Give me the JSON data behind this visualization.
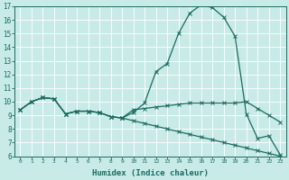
{
  "x": [
    0,
    1,
    2,
    3,
    4,
    5,
    6,
    7,
    8,
    9,
    10,
    11,
    12,
    13,
    14,
    15,
    16,
    17,
    18,
    19,
    20,
    21,
    22,
    23
  ],
  "line1": [
    9.4,
    10.0,
    10.3,
    10.2,
    9.1,
    9.3,
    9.3,
    9.2,
    8.9,
    8.8,
    9.2,
    9.9,
    12.2,
    12.8,
    15.0,
    16.5,
    17.1,
    16.9,
    16.2,
    14.8,
    9.1,
    7.3,
    7.5,
    6.1
  ],
  "line2": [
    9.4,
    10.0,
    10.3,
    10.2,
    9.1,
    9.3,
    9.3,
    9.2,
    8.9,
    8.8,
    8.6,
    8.4,
    8.2,
    8.0,
    7.8,
    7.6,
    7.4,
    7.2,
    7.0,
    6.8,
    6.6,
    6.4,
    6.2,
    6.0
  ],
  "line3": [
    9.4,
    10.0,
    10.3,
    10.2,
    9.1,
    9.3,
    9.3,
    9.2,
    8.9,
    8.8,
    9.4,
    9.5,
    9.6,
    9.7,
    9.8,
    9.9,
    9.9,
    9.9,
    9.9,
    9.9,
    10.0,
    9.5,
    9.0,
    8.5
  ],
  "line_color": "#1a6b5e",
  "bg_color": "#c8ebe8",
  "grid_color": "#ffffff",
  "xlabel": "Humidex (Indice chaleur)",
  "ylim": [
    6,
    17
  ],
  "xlim": [
    -0.5,
    23.5
  ],
  "yticks": [
    6,
    7,
    8,
    9,
    10,
    11,
    12,
    13,
    14,
    15,
    16,
    17
  ],
  "xticks": [
    0,
    1,
    2,
    3,
    4,
    5,
    6,
    7,
    8,
    9,
    10,
    11,
    12,
    13,
    14,
    15,
    16,
    17,
    18,
    19,
    20,
    21,
    22,
    23
  ]
}
